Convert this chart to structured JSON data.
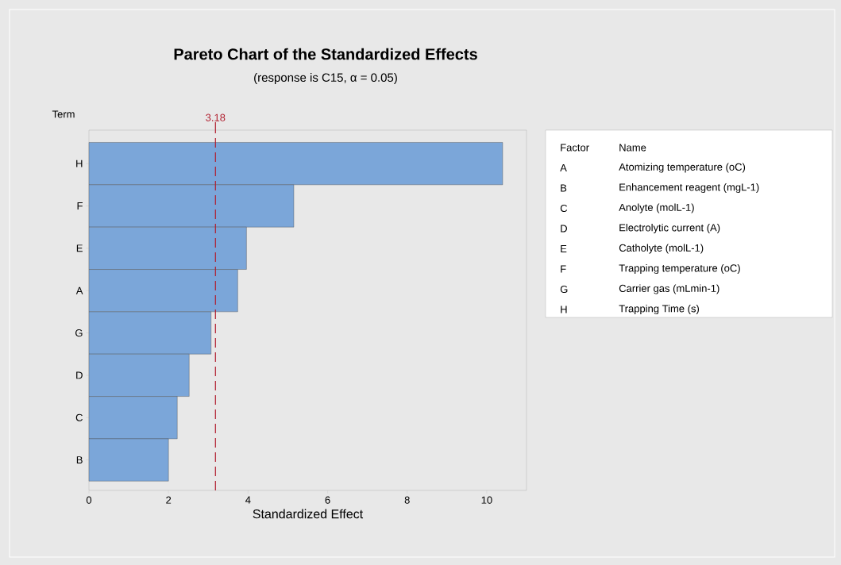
{
  "chart_data": {
    "type": "bar",
    "orientation": "horizontal",
    "title": "Pareto Chart of the Standardized Effects",
    "subtitle": "(response is C15, α = 0.05)",
    "xlabel": "Standardized Effect",
    "ylabel": "Term",
    "categories": [
      "H",
      "F",
      "E",
      "A",
      "G",
      "D",
      "C",
      "B"
    ],
    "values": [
      10.4,
      5.15,
      3.96,
      3.74,
      3.07,
      2.52,
      2.22,
      2.0
    ],
    "color": "#7ba6d9",
    "xlim": [
      0,
      11
    ],
    "xticks": [
      0,
      2,
      4,
      6,
      8,
      10
    ],
    "ref_lines": [
      {
        "axis": "x",
        "value": 3.18,
        "label": "3.18",
        "color": "#b01e2e",
        "line_style": "dashed"
      }
    ],
    "annotations": [
      "Factor",
      "Name",
      "A",
      "Atomizing temperature (oC)",
      "B",
      "Enhancement reagent (mgL-1)",
      "C",
      "Anolyte (molL-1)",
      "D",
      "Electrolytic current (A)",
      "E",
      "Catholyte (molL-1)",
      "F",
      "Trapping temperature (oC)",
      "G",
      "Carrier gas (mLmin-1)",
      "H",
      "Trapping Time (s)"
    ]
  }
}
